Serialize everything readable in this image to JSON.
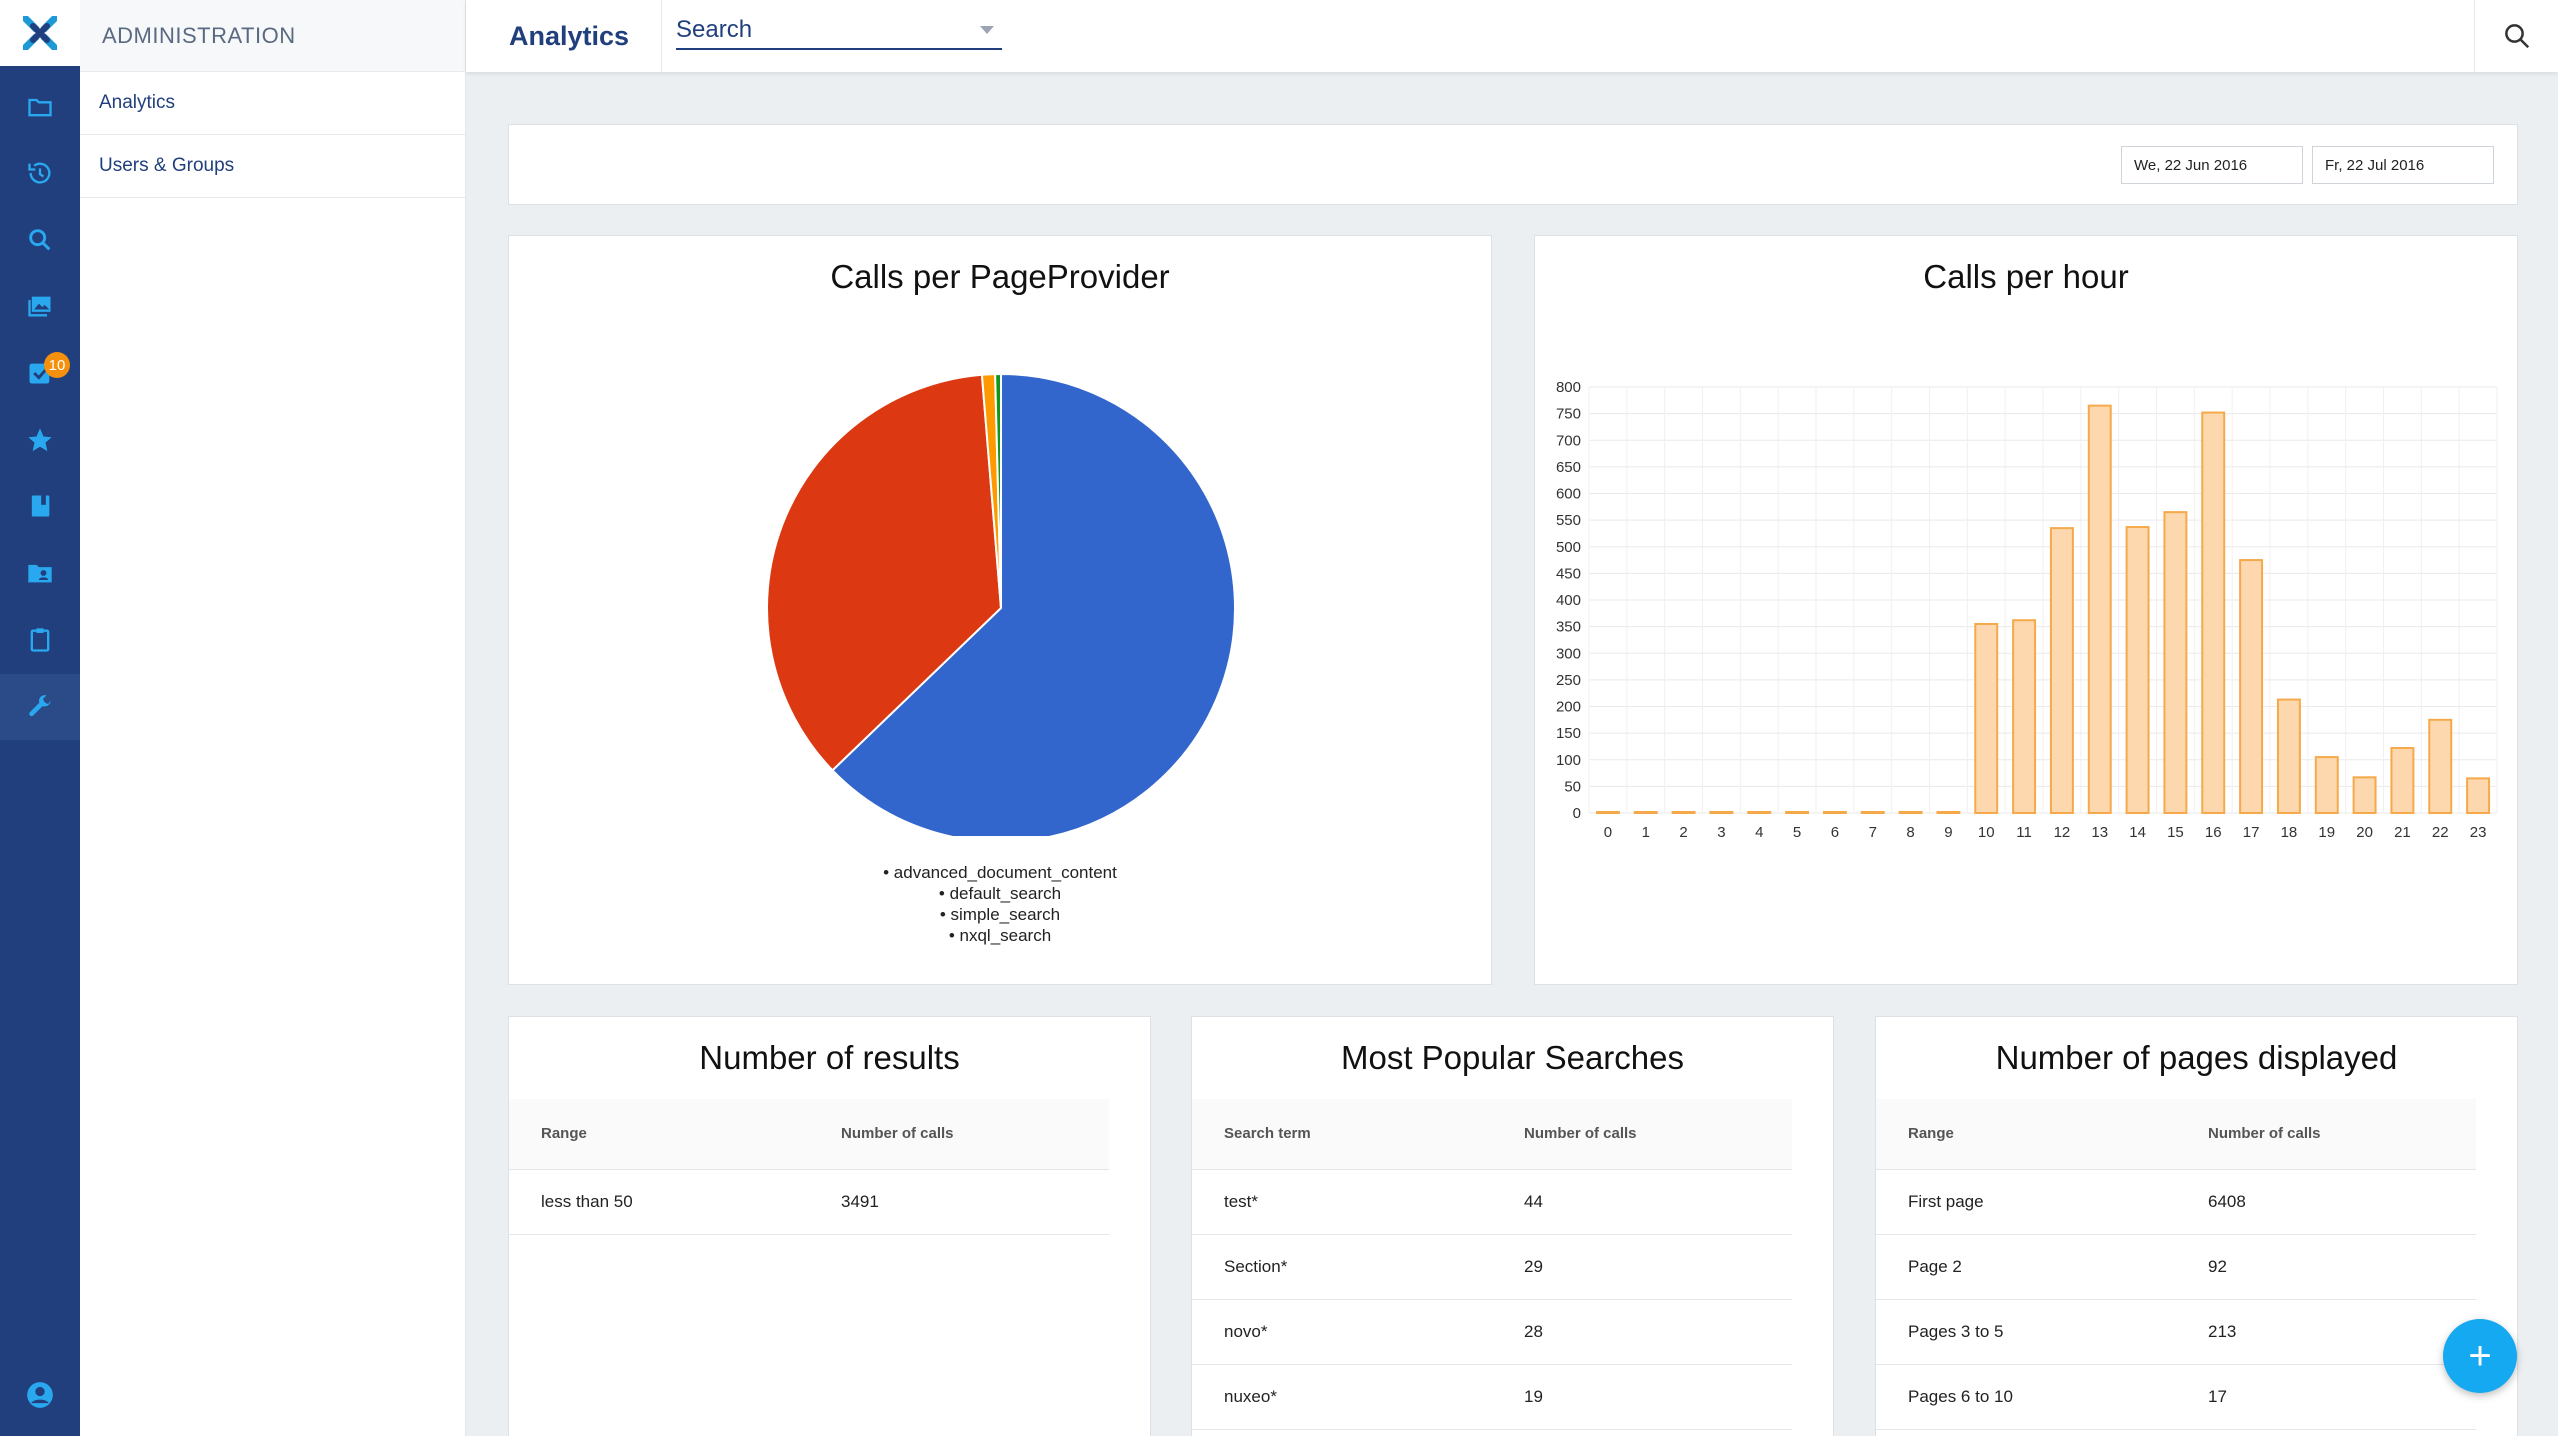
{
  "app": {
    "section_title": "ADMINISTRATION",
    "header_title": "Analytics",
    "search_label": "Search"
  },
  "rail": {
    "badge_count": "10",
    "items": [
      "folder-icon",
      "history-icon",
      "search-icon",
      "gallery-icon",
      "tasks-icon",
      "star-icon",
      "book-icon",
      "shared-folder-icon",
      "clipboard-icon",
      "wrench-icon"
    ]
  },
  "sidebar": {
    "items": [
      {
        "label": "Analytics"
      },
      {
        "label": "Users & Groups"
      }
    ]
  },
  "dates": {
    "start": "We, 22 Jun 2016",
    "end": "Fr, 22 Jul 2016"
  },
  "colors": {
    "primary": "#213f7d",
    "accent": "#14a9f0",
    "badge": "#f4900c",
    "bar_fill": "#fdd8ae",
    "bar_stroke": "#f5a94a"
  },
  "chart_data": [
    {
      "type": "pie",
      "title": "Calls per PageProvider",
      "slices": [
        {
          "label": "advanced_document_content",
          "value": 62.8,
          "color": "#3366cc"
        },
        {
          "label": "default_search",
          "value": 35.9,
          "color": "#dc3912"
        },
        {
          "label": "simple_search",
          "value": 0.9,
          "color": "#ff9900"
        },
        {
          "label": "nxql_search",
          "value": 0.4,
          "color": "#109618"
        }
      ]
    },
    {
      "type": "bar",
      "title": "Calls per hour",
      "categories": [
        "0",
        "1",
        "2",
        "3",
        "4",
        "5",
        "6",
        "7",
        "8",
        "9",
        "10",
        "11",
        "12",
        "13",
        "14",
        "15",
        "16",
        "17",
        "18",
        "19",
        "20",
        "21",
        "22",
        "23"
      ],
      "values": [
        0,
        0,
        0,
        0,
        0,
        0,
        0,
        0,
        0,
        0,
        355,
        362,
        535,
        765,
        537,
        565,
        752,
        475,
        213,
        105,
        67,
        122,
        175,
        65
      ],
      "yticks": [
        0,
        50,
        100,
        150,
        200,
        250,
        300,
        350,
        400,
        450,
        500,
        550,
        600,
        650,
        700,
        750,
        800
      ],
      "ylim": [
        0,
        800
      ],
      "grid": true
    }
  ],
  "tables": {
    "results": {
      "title": "Number of results",
      "headers": [
        "Range",
        "Number of calls"
      ],
      "rows": [
        [
          "less than 50",
          "3491"
        ]
      ]
    },
    "popular": {
      "title": "Most Popular Searches",
      "headers": [
        "Search term",
        "Number of calls"
      ],
      "rows": [
        [
          "test*",
          "44"
        ],
        [
          "Section*",
          "29"
        ],
        [
          "novo*",
          "28"
        ],
        [
          "nuxeo*",
          "19"
        ]
      ]
    },
    "pages": {
      "title": "Number of pages displayed",
      "headers": [
        "Range",
        "Number of calls"
      ],
      "rows": [
        [
          "First page",
          "6408"
        ],
        [
          "Page 2",
          "92"
        ],
        [
          "Pages 3 to 5",
          "213"
        ],
        [
          "Pages 6 to 10",
          "17"
        ]
      ]
    }
  }
}
